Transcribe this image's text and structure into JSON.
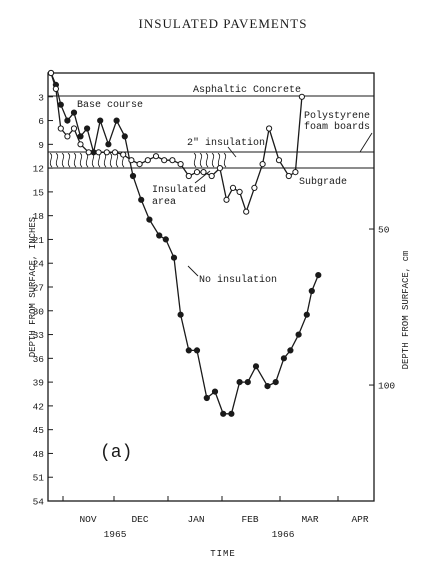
{
  "header": {
    "title": "INSULATED PAVEMENTS"
  },
  "panel_label": "(a)",
  "chart_data": {
    "type": "line",
    "title": "",
    "xlabel": "TIME",
    "ylabel": "DEPTH FROM SURFACE, INCHES",
    "ylabel_right": "DEPTH FROM SURFACE, cm",
    "ylim": [
      0,
      54
    ],
    "y_inverted": true,
    "y_ticks": [
      "3",
      "6",
      "9",
      "12",
      "15",
      "18",
      "21",
      "24",
      "27",
      "30",
      "33",
      "36",
      "39",
      "42",
      "45",
      "48",
      "51",
      "54"
    ],
    "y_ticks_right": [
      "50",
      "100"
    ],
    "months": [
      "NOV",
      "DEC",
      "JAN",
      "FEB",
      "MAR",
      "APR"
    ],
    "years": [
      "1965",
      "1966"
    ],
    "layers": [
      {
        "name": "Asphaltic Concrete",
        "bottom_depth": 3
      },
      {
        "name": "Base course",
        "bottom_depth": 10
      },
      {
        "name": "2\" insulation",
        "bottom_depth": 12
      },
      {
        "name": "Subgrade",
        "bottom_depth": null
      }
    ],
    "annotations": [
      "Asphaltic Concrete",
      "Base course",
      "2\" insulation",
      "Polystyrene",
      "foam boards",
      "Insulated",
      "area",
      "Subgrade",
      "No insulation"
    ],
    "series": [
      {
        "name": "No insulation",
        "marker": "filled",
        "points": [
          [
            0,
            0
          ],
          [
            3,
            1.5
          ],
          [
            6,
            4
          ],
          [
            10,
            6
          ],
          [
            14,
            5
          ],
          [
            18,
            8
          ],
          [
            22,
            7
          ],
          [
            26,
            10
          ],
          [
            30,
            6
          ],
          [
            35,
            9
          ],
          [
            40,
            6
          ],
          [
            45,
            8
          ],
          [
            50,
            13
          ],
          [
            55,
            16
          ],
          [
            60,
            18.5
          ],
          [
            66,
            20.5
          ],
          [
            70,
            21
          ],
          [
            75,
            23.3
          ],
          [
            79,
            30.5
          ],
          [
            84,
            35
          ],
          [
            89,
            35
          ],
          [
            95,
            41
          ],
          [
            100,
            40.2
          ],
          [
            105,
            43
          ],
          [
            110,
            43
          ],
          [
            115,
            39
          ],
          [
            120,
            39
          ],
          [
            125,
            37
          ],
          [
            132,
            39.5
          ],
          [
            137,
            39
          ],
          [
            142,
            36
          ],
          [
            146,
            35
          ],
          [
            151,
            33
          ],
          [
            156,
            30.5
          ],
          [
            159,
            27.5
          ],
          [
            163,
            25.5
          ]
        ]
      },
      {
        "name": "Insulated area",
        "marker": "open",
        "points": [
          [
            0,
            0
          ],
          [
            3,
            2
          ],
          [
            6,
            7
          ],
          [
            10,
            8
          ],
          [
            14,
            7
          ],
          [
            18,
            9
          ],
          [
            23,
            10
          ],
          [
            29,
            10
          ],
          [
            34,
            10
          ],
          [
            39,
            10
          ],
          [
            44,
            10.3
          ],
          [
            49,
            11
          ],
          [
            54,
            11.5
          ],
          [
            59,
            11
          ],
          [
            64,
            10.5
          ],
          [
            69,
            11
          ],
          [
            74,
            11
          ],
          [
            79,
            11.5
          ],
          [
            84,
            13
          ],
          [
            89,
            12.5
          ],
          [
            93,
            12.5
          ],
          [
            98,
            13
          ],
          [
            103,
            12
          ],
          [
            107,
            16
          ],
          [
            111,
            14.5
          ],
          [
            115,
            15
          ],
          [
            119,
            17.5
          ],
          [
            124,
            14.5
          ],
          [
            129,
            11.5
          ],
          [
            133,
            7
          ],
          [
            139,
            11
          ],
          [
            145,
            13
          ],
          [
            149,
            12.5
          ],
          [
            153,
            3
          ]
        ]
      }
    ]
  }
}
